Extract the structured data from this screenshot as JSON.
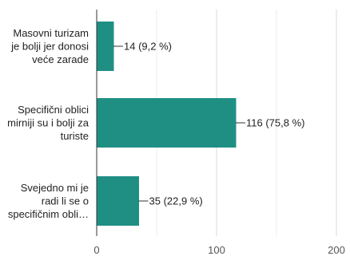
{
  "chart_data": {
    "type": "bar",
    "orientation": "horizontal",
    "categories": [
      [
        "Masovni turizam",
        "je bolji jer donosi",
        "veće zarade"
      ],
      [
        "Specifični oblici",
        "mirniji su i bolji za",
        "turiste"
      ],
      [
        "Svejedno mi je",
        "radi li se o",
        "specifičnim obli…"
      ]
    ],
    "values": [
      14,
      116,
      35
    ],
    "data_labels": [
      "14 (9,2 %)",
      "116 (75,8 %)",
      "35 (22,9 %)"
    ],
    "xlim": [
      0,
      200
    ],
    "x_ticks": [
      0,
      100,
      200
    ],
    "grid": "vertical",
    "bar_color": "#1f8f84",
    "title": "",
    "xlabel": "",
    "ylabel": ""
  }
}
